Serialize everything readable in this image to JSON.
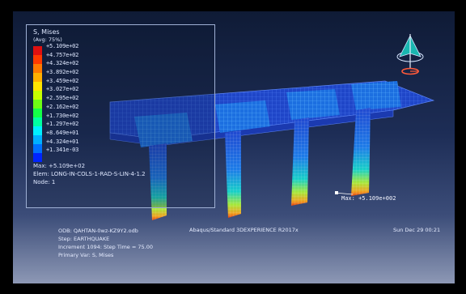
{
  "legend": {
    "title": "S, Mises",
    "subtitle": "(Avg: 75%)",
    "colors": [
      "#e01010",
      "#ff3a00",
      "#ff7a00",
      "#ffb000",
      "#ffe400",
      "#c6ff00",
      "#6eff14",
      "#14ff46",
      "#00ffa0",
      "#00f0ff",
      "#00b0ff",
      "#0070ff",
      "#0024ff"
    ],
    "values": [
      "+5.109e+02",
      "+4.757e+02",
      "+4.324e+02",
      "+3.892e+02",
      "+3.459e+02",
      "+3.027e+02",
      "+2.595e+02",
      "+2.162e+02",
      "+1.730e+02",
      "+1.297e+02",
      "+8.649e+01",
      "+4.324e+01",
      "+1.341e-03"
    ],
    "max_text": "Max: +5.109e+02",
    "elem_text": "Elem: LONG-IN-COLS-1-RAD-S-LIN-4-1.2",
    "node_text": "Node: 1"
  },
  "callout": {
    "text": "Max: +5.109e+002"
  },
  "info": {
    "odb": "ODB: QAHTAN-0wz-KZ9Y2.odb",
    "solver": "Abaqus/Standard 3DEXPERIENCE R2017x",
    "date": "Sun Dec 29 00:21",
    "step": "Step: EARTHQUAKE",
    "increment": "Increment    1094: Step Time =      75.00",
    "primary": "Primary Var: S, Mises"
  },
  "colors": {
    "mesh": "#2b57d8",
    "background_top": "#0f1b36",
    "background_bottom": "#8d98b5"
  },
  "icons": {
    "triad": "view-triad-icon"
  }
}
